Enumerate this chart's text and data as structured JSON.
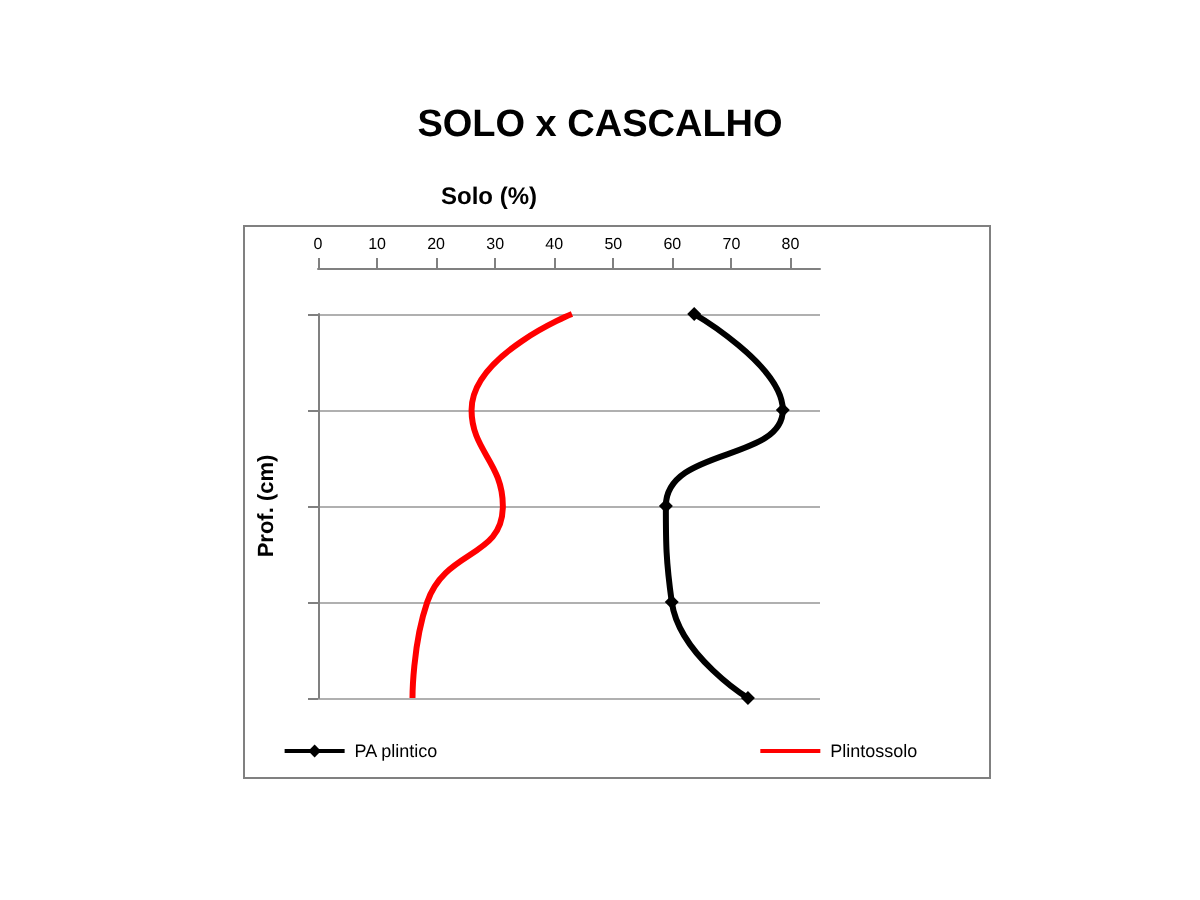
{
  "chart_data": {
    "type": "line",
    "orientation": "horizontal",
    "title": "SOLO x CASCALHO",
    "xlabel": "Solo (%)",
    "ylabel": "Prof. (cm)",
    "categories": [
      null,
      null,
      null,
      null,
      null
    ],
    "xlim": [
      0,
      85
    ],
    "xticks": [
      0,
      10,
      20,
      30,
      40,
      50,
      60,
      70,
      80
    ],
    "grid": "y",
    "legend": "bottom",
    "series": [
      {
        "name": "PA plintico",
        "color": "#000000",
        "marker": "diamond",
        "values": [
          63.7,
          78.7,
          58.9,
          59.9,
          72.8
        ]
      },
      {
        "name": "Plintossolo",
        "color": "#ff0000",
        "marker": "none",
        "values": [
          43,
          26,
          31.3,
          18.5,
          16
        ]
      }
    ]
  }
}
